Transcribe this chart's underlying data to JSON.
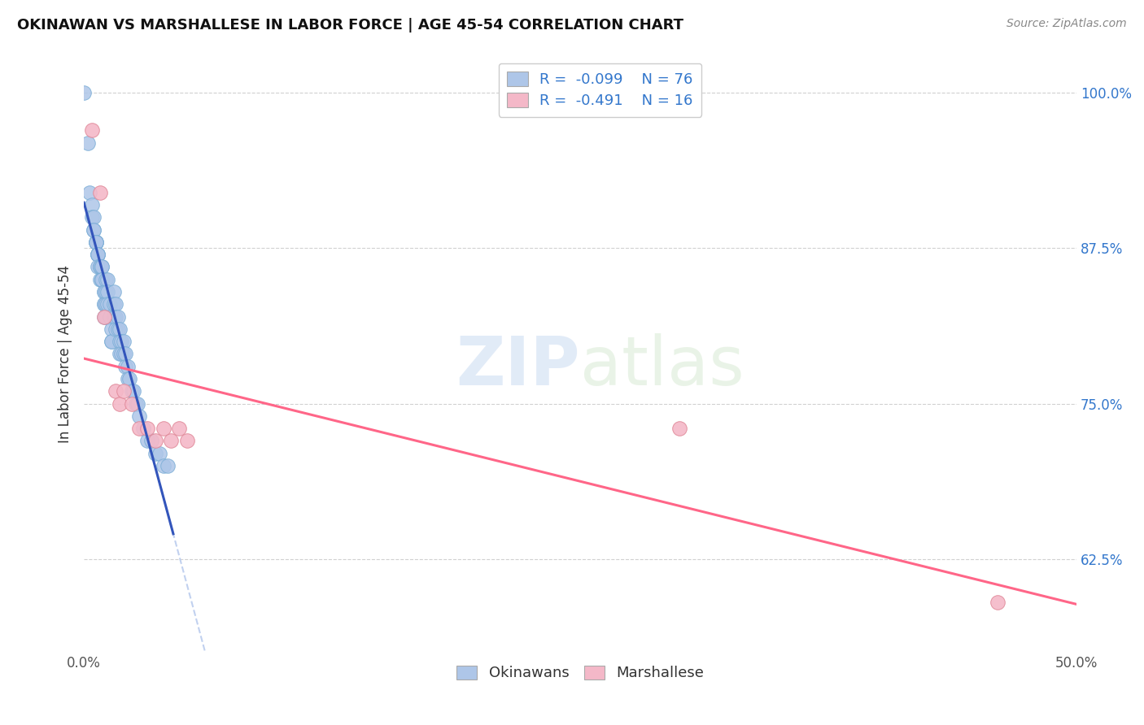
{
  "title": "OKINAWAN VS MARSHALLESE IN LABOR FORCE | AGE 45-54 CORRELATION CHART",
  "source": "Source: ZipAtlas.com",
  "ylabel": "In Labor Force | Age 45-54",
  "xlabel": "",
  "xlim": [
    0.0,
    0.5
  ],
  "ylim": [
    0.55,
    1.03
  ],
  "xticks": [
    0.0,
    0.1,
    0.2,
    0.3,
    0.4,
    0.5
  ],
  "xticklabels": [
    "0.0%",
    "",
    "",
    "",
    "",
    "50.0%"
  ],
  "yticks": [
    0.625,
    0.75,
    0.875,
    1.0
  ],
  "yticklabels": [
    "62.5%",
    "75.0%",
    "87.5%",
    "100.0%"
  ],
  "watermark": "ZIPatlas",
  "okinawan_x": [
    0.002,
    0.003,
    0.004,
    0.004,
    0.005,
    0.005,
    0.005,
    0.006,
    0.006,
    0.006,
    0.006,
    0.007,
    0.007,
    0.007,
    0.007,
    0.007,
    0.008,
    0.008,
    0.008,
    0.008,
    0.009,
    0.009,
    0.009,
    0.009,
    0.009,
    0.01,
    0.01,
    0.01,
    0.01,
    0.01,
    0.011,
    0.011,
    0.011,
    0.011,
    0.012,
    0.012,
    0.012,
    0.013,
    0.013,
    0.013,
    0.014,
    0.014,
    0.014,
    0.015,
    0.015,
    0.015,
    0.016,
    0.016,
    0.016,
    0.017,
    0.017,
    0.018,
    0.018,
    0.018,
    0.019,
    0.019,
    0.02,
    0.02,
    0.021,
    0.021,
    0.022,
    0.022,
    0.023,
    0.024,
    0.025,
    0.026,
    0.027,
    0.028,
    0.03,
    0.032,
    0.034,
    0.036,
    0.038,
    0.04,
    0.042,
    0.0
  ],
  "okinawan_y": [
    0.96,
    0.92,
    0.91,
    0.9,
    0.9,
    0.89,
    0.89,
    0.88,
    0.88,
    0.88,
    0.88,
    0.87,
    0.87,
    0.87,
    0.87,
    0.86,
    0.86,
    0.86,
    0.86,
    0.85,
    0.85,
    0.86,
    0.86,
    0.85,
    0.85,
    0.84,
    0.84,
    0.83,
    0.83,
    0.82,
    0.85,
    0.84,
    0.83,
    0.82,
    0.85,
    0.84,
    0.83,
    0.83,
    0.82,
    0.82,
    0.81,
    0.8,
    0.8,
    0.84,
    0.83,
    0.82,
    0.83,
    0.82,
    0.81,
    0.82,
    0.81,
    0.81,
    0.8,
    0.79,
    0.8,
    0.79,
    0.8,
    0.79,
    0.79,
    0.78,
    0.78,
    0.77,
    0.77,
    0.76,
    0.76,
    0.75,
    0.75,
    0.74,
    0.73,
    0.72,
    0.72,
    0.71,
    0.71,
    0.7,
    0.7,
    1.0
  ],
  "marshallese_x": [
    0.004,
    0.008,
    0.01,
    0.016,
    0.018,
    0.02,
    0.024,
    0.028,
    0.032,
    0.036,
    0.04,
    0.044,
    0.048,
    0.052,
    0.3,
    0.46
  ],
  "marshallese_y": [
    0.97,
    0.92,
    0.82,
    0.76,
    0.75,
    0.76,
    0.75,
    0.73,
    0.73,
    0.72,
    0.73,
    0.72,
    0.73,
    0.72,
    0.73,
    0.59
  ],
  "okinawan_color": "#aec6e8",
  "okinawan_edge": "#7baed6",
  "marshallese_color": "#f4b8c8",
  "marshallese_edge": "#e08898",
  "trend_blue_solid_color": "#3355bb",
  "trend_pink_color": "#ff6688",
  "trend_blue_dashed_color": "#bbccee",
  "background_color": "#ffffff",
  "grid_color": "#cccccc"
}
